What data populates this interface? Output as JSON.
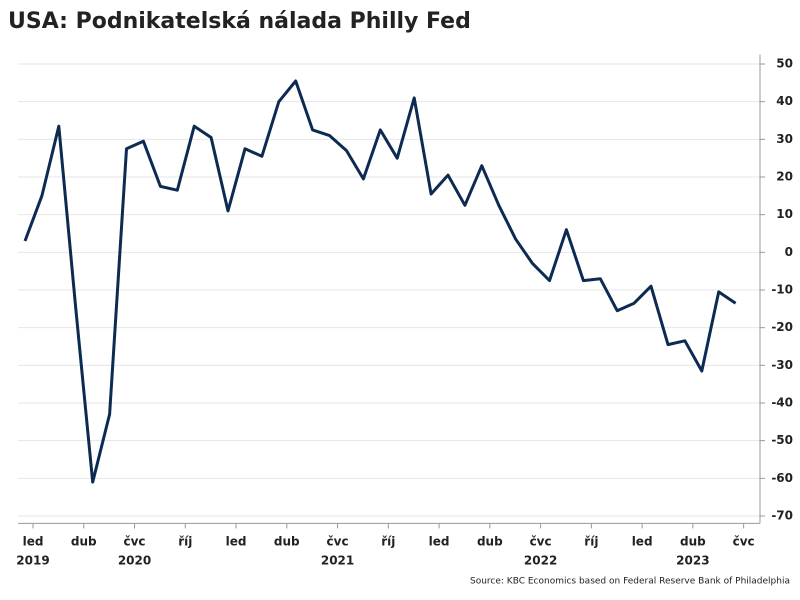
{
  "chart_data": {
    "type": "line",
    "title": "USA: Podnikatelská nálada Philly Fed",
    "source": "Source: KBC Economics based on Federal Reserve Bank of Philadelphia",
    "categories": [
      "led",
      null,
      null,
      "dub",
      null,
      null,
      "čvc",
      null,
      null,
      "říj",
      null,
      null,
      "led",
      null,
      null,
      "dub",
      null,
      null,
      "čvc",
      null,
      null,
      "říj",
      null,
      null,
      "led",
      null,
      null,
      "dub",
      null,
      null,
      "čvc",
      null,
      null,
      "říj",
      null,
      null,
      "led",
      null,
      null,
      "dub",
      null,
      null,
      "čvc"
    ],
    "years": [
      "2019",
      null,
      null,
      null,
      null,
      null,
      "2020",
      null,
      null,
      null,
      null,
      null,
      null,
      null,
      null,
      null,
      null,
      null,
      "2021",
      null,
      null,
      null,
      null,
      null,
      null,
      null,
      null,
      null,
      null,
      null,
      "2022",
      null,
      null,
      null,
      null,
      null,
      null,
      null,
      null,
      "2023",
      null,
      null,
      null
    ],
    "series": [
      {
        "name": "Philly Fed",
        "color": "#0d2b52",
        "values": [
          3,
          15,
          33.5,
          -15,
          -61,
          -43,
          27.5,
          29.5,
          17.5,
          16.5,
          33.5,
          30.5,
          11,
          27.5,
          25.5,
          40,
          45.5,
          32.5,
          31,
          27,
          19.5,
          32.5,
          25,
          41,
          15.5,
          20.5,
          12.5,
          23,
          12.5,
          3.5,
          -3,
          -7.5,
          6,
          -7.5,
          -7,
          -15.5,
          -13.5,
          -9,
          -24.5,
          -23.5,
          -31.5,
          -10.5,
          -13.5
        ]
      }
    ],
    "ylim": [
      -72.5,
      52.5
    ],
    "yticks": [
      -70,
      -60,
      -50,
      -40,
      -30,
      -20,
      -10,
      0,
      10,
      20,
      30,
      40,
      50
    ],
    "grid": true
  }
}
